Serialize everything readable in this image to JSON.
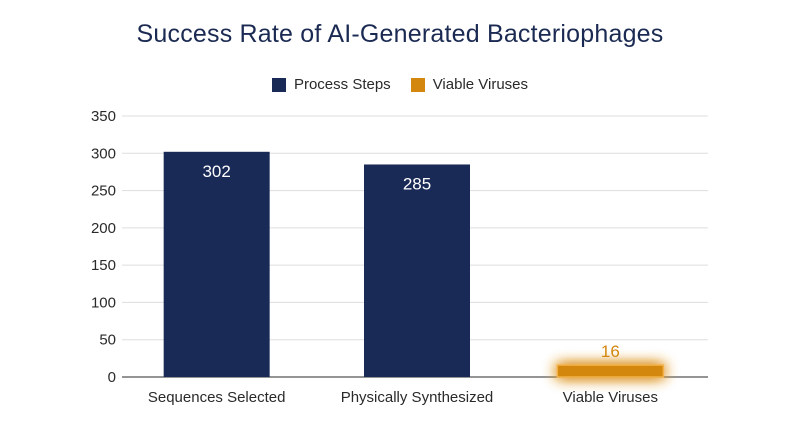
{
  "chart_data": {
    "type": "bar",
    "title": "Success Rate of AI-Generated Bacteriophages",
    "categories": [
      "Sequences Selected",
      "Physically Synthesized",
      "Viable Viruses"
    ],
    "values": [
      302,
      285,
      16
    ],
    "data_labels": [
      "302",
      "285",
      "16"
    ],
    "series_group": [
      "process",
      "process",
      "viable"
    ],
    "legend": [
      {
        "name": "Process Steps",
        "color": "#1a2a57"
      },
      {
        "name": "Viable Viruses",
        "color": "#d4870f"
      }
    ],
    "legend_position": "top-center",
    "ylim": [
      0,
      350
    ],
    "yticks": [
      "0",
      "50",
      "100",
      "150",
      "200",
      "250",
      "300",
      "350"
    ],
    "grid": true,
    "xlabel": "",
    "ylabel": ""
  }
}
